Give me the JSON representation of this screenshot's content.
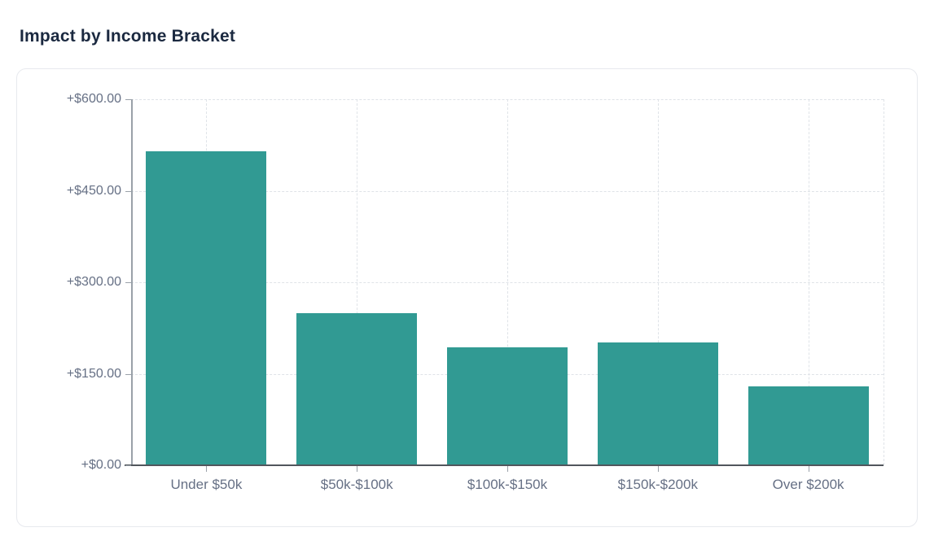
{
  "page": {
    "title": "Impact by Income Bracket"
  },
  "chart_data": {
    "type": "bar",
    "title": "Impact by Income Bracket",
    "categories": [
      "Under $50k",
      "$50k-$100k",
      "$100k-$150k",
      "$150k-$200k",
      "Over $200k"
    ],
    "values": [
      515,
      250,
      193,
      202,
      129
    ],
    "value_prefix": "+$",
    "value_decimals": 2,
    "y_ticks": [
      {
        "value": 0,
        "label": "+$0.00"
      },
      {
        "value": 150,
        "label": "+$150.00"
      },
      {
        "value": 300,
        "label": "+$300.00"
      },
      {
        "value": 450,
        "label": "+$450.00"
      },
      {
        "value": 600,
        "label": "+$600.00"
      }
    ],
    "ylim": [
      0,
      600
    ],
    "xlabel": "",
    "ylabel": "",
    "legend": "none",
    "grid": {
      "horizontal": "dashed at each y tick",
      "vertical": "dashed at each category center and right edge"
    },
    "colors": {
      "bar": "#319a93",
      "title": "#1b2940",
      "axis_label": "#667085",
      "grid_line": "#dfe3e8",
      "axis_line": "#9aa1a9",
      "baseline": "#51565c",
      "card_border": "#e7e9ee",
      "background": "#ffffff"
    }
  }
}
